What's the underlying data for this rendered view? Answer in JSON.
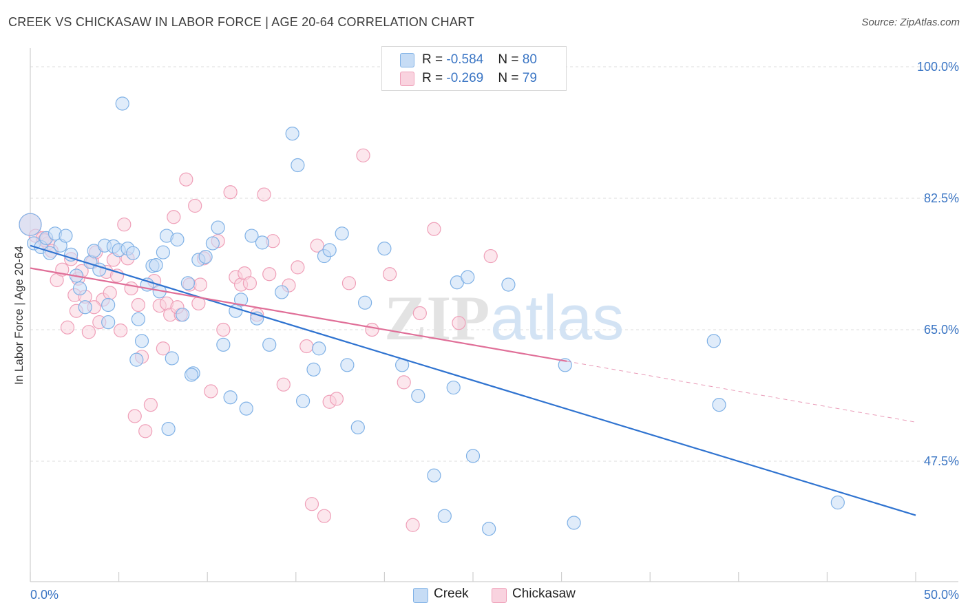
{
  "title": "CREEK VS CHICKASAW IN LABOR FORCE | AGE 20-64 CORRELATION CHART",
  "source": "Source: ZipAtlas.com",
  "watermark": {
    "zip": "ZIP",
    "atlas": "atlas"
  },
  "legend": {
    "items": [
      {
        "name": "Creek",
        "r_label": "R = ",
        "r": "-0.584",
        "n_label": "N = ",
        "n": "80",
        "color": "#7fb1e6",
        "fill": "#c6dcf5"
      },
      {
        "name": "Chickasaw",
        "r_label": "R = ",
        "r": "-0.269",
        "n_label": "N = ",
        "n": "79",
        "color": "#ef9fb8",
        "fill": "#f9d3df"
      }
    ]
  },
  "bottom_legend": [
    "Creek",
    "Chickasaw"
  ],
  "chart_data": {
    "type": "scatter",
    "title": "CREEK VS CHICKASAW IN LABOR FORCE | AGE 20-64 CORRELATION CHART",
    "xlabel": "",
    "ylabel": "In Labor Force | Age 20-64",
    "xlim": [
      0,
      50
    ],
    "ylim": [
      32.5,
      103
    ],
    "x_tick_labels": [
      "0.0%",
      "50.0%"
    ],
    "y_ticks": [
      100.0,
      82.5,
      65.0,
      47.5
    ],
    "y_tick_labels": [
      "100.0%",
      "82.5%",
      "65.0%",
      "47.5%"
    ],
    "grid": true,
    "colors": {
      "creek_stroke": "#7fb1e6",
      "creek_fill": "#c6dcf5",
      "creek_line": "#2f73d0",
      "chickasaw_stroke": "#ef9fb8",
      "chickasaw_fill": "#f9d3df",
      "chickasaw_line": "#e06f98"
    },
    "series": [
      {
        "name": "Creek",
        "trend": {
          "x0": 0,
          "y0": 76.2,
          "x1": 50,
          "y1": 40.3,
          "dashed_from": null
        },
        "points": [
          [
            0.0,
            79.0
          ],
          [
            0.2,
            76.5
          ],
          [
            0.6,
            76.0
          ],
          [
            0.9,
            77.2
          ],
          [
            1.1,
            75.2
          ],
          [
            1.4,
            77.8
          ],
          [
            1.7,
            76.2
          ],
          [
            2.0,
            77.5
          ],
          [
            2.3,
            75.0
          ],
          [
            2.6,
            72.2
          ],
          [
            2.8,
            70.5
          ],
          [
            3.1,
            68.0
          ],
          [
            3.4,
            74.0
          ],
          [
            3.6,
            75.5
          ],
          [
            3.9,
            73.0
          ],
          [
            4.2,
            76.2
          ],
          [
            4.4,
            68.3
          ],
          [
            4.7,
            76.1
          ],
          [
            5.0,
            75.6
          ],
          [
            5.2,
            95.1
          ],
          [
            5.5,
            75.8
          ],
          [
            5.8,
            75.2
          ],
          [
            6.1,
            66.4
          ],
          [
            6.3,
            63.5
          ],
          [
            6.6,
            71.0
          ],
          [
            6.9,
            73.5
          ],
          [
            7.1,
            73.6
          ],
          [
            7.3,
            70.1
          ],
          [
            7.5,
            75.3
          ],
          [
            7.7,
            77.5
          ],
          [
            8.0,
            61.2
          ],
          [
            8.3,
            77.0
          ],
          [
            8.6,
            67.0
          ],
          [
            8.9,
            71.2
          ],
          [
            9.2,
            59.2
          ],
          [
            9.5,
            74.3
          ],
          [
            9.9,
            74.7
          ],
          [
            10.3,
            76.5
          ],
          [
            10.6,
            78.6
          ],
          [
            10.9,
            63.0
          ],
          [
            11.3,
            56.0
          ],
          [
            11.6,
            67.5
          ],
          [
            11.9,
            69.0
          ],
          [
            12.2,
            54.5
          ],
          [
            12.5,
            77.5
          ],
          [
            12.8,
            66.5
          ],
          [
            13.1,
            76.6
          ],
          [
            13.5,
            63.0
          ],
          [
            14.2,
            70.0
          ],
          [
            14.8,
            91.1
          ],
          [
            15.1,
            86.9
          ],
          [
            15.4,
            55.5
          ],
          [
            16.0,
            59.7
          ],
          [
            16.3,
            62.5
          ],
          [
            16.6,
            74.8
          ],
          [
            16.9,
            75.6
          ],
          [
            17.6,
            77.8
          ],
          [
            17.9,
            60.3
          ],
          [
            18.5,
            52.0
          ],
          [
            18.9,
            68.6
          ],
          [
            20.0,
            75.8
          ],
          [
            21.0,
            60.3
          ],
          [
            21.9,
            56.2
          ],
          [
            22.8,
            45.6
          ],
          [
            23.4,
            40.2
          ],
          [
            23.9,
            57.3
          ],
          [
            24.1,
            71.3
          ],
          [
            24.7,
            72.0
          ],
          [
            25.0,
            48.2
          ],
          [
            25.9,
            38.5
          ],
          [
            27.0,
            71.0
          ],
          [
            30.2,
            60.3
          ],
          [
            30.7,
            39.3
          ],
          [
            38.6,
            63.5
          ],
          [
            38.9,
            55.0
          ],
          [
            45.6,
            42.0
          ],
          [
            7.8,
            51.8
          ],
          [
            9.1,
            59.0
          ],
          [
            4.4,
            66.0
          ],
          [
            6.0,
            61.0
          ]
        ]
      },
      {
        "name": "Chickasaw",
        "trend": {
          "x0": 0,
          "y0": 73.2,
          "x1": 30.3,
          "y1": 60.8,
          "dashed_from": 30.3,
          "dash_x1": 50,
          "dash_y1": 52.7
        },
        "points": [
          [
            0.0,
            79.0
          ],
          [
            0.3,
            77.5
          ],
          [
            0.7,
            77.2
          ],
          [
            1.0,
            76.5
          ],
          [
            1.2,
            75.5
          ],
          [
            1.5,
            71.6
          ],
          [
            1.8,
            73.0
          ],
          [
            2.1,
            65.3
          ],
          [
            2.3,
            74.4
          ],
          [
            2.5,
            69.6
          ],
          [
            2.7,
            71.8
          ],
          [
            2.9,
            72.8
          ],
          [
            3.1,
            69.4
          ],
          [
            3.3,
            64.7
          ],
          [
            3.5,
            74.0
          ],
          [
            3.7,
            75.3
          ],
          [
            3.9,
            66.0
          ],
          [
            4.1,
            69.0
          ],
          [
            4.3,
            72.7
          ],
          [
            4.5,
            69.9
          ],
          [
            4.7,
            74.3
          ],
          [
            4.9,
            72.2
          ],
          [
            5.1,
            64.9
          ],
          [
            5.3,
            79.0
          ],
          [
            5.5,
            74.5
          ],
          [
            5.7,
            70.5
          ],
          [
            5.9,
            53.5
          ],
          [
            6.1,
            68.3
          ],
          [
            6.3,
            61.4
          ],
          [
            6.5,
            51.5
          ],
          [
            6.8,
            55.0
          ],
          [
            7.0,
            71.5
          ],
          [
            7.3,
            68.2
          ],
          [
            7.5,
            62.5
          ],
          [
            7.7,
            68.5
          ],
          [
            7.9,
            67.0
          ],
          [
            8.1,
            80.0
          ],
          [
            8.5,
            67.0
          ],
          [
            8.8,
            85.0
          ],
          [
            9.0,
            71.0
          ],
          [
            9.3,
            81.5
          ],
          [
            9.5,
            68.5
          ],
          [
            9.8,
            74.5
          ],
          [
            10.2,
            56.8
          ],
          [
            10.6,
            76.8
          ],
          [
            10.9,
            65.0
          ],
          [
            11.3,
            83.3
          ],
          [
            11.6,
            72.0
          ],
          [
            11.9,
            71.0
          ],
          [
            12.1,
            72.5
          ],
          [
            12.4,
            71.2
          ],
          [
            12.8,
            67.0
          ],
          [
            13.2,
            83.0
          ],
          [
            13.5,
            72.4
          ],
          [
            13.7,
            76.8
          ],
          [
            14.3,
            57.7
          ],
          [
            14.6,
            70.9
          ],
          [
            15.1,
            73.3
          ],
          [
            15.6,
            62.8
          ],
          [
            15.9,
            41.8
          ],
          [
            16.2,
            76.2
          ],
          [
            16.6,
            40.2
          ],
          [
            16.9,
            55.4
          ],
          [
            17.3,
            55.8
          ],
          [
            18.0,
            71.2
          ],
          [
            18.8,
            88.2
          ],
          [
            19.3,
            65.0
          ],
          [
            20.3,
            72.4
          ],
          [
            21.1,
            58.0
          ],
          [
            21.6,
            39.0
          ],
          [
            22.0,
            67.2
          ],
          [
            22.8,
            78.4
          ],
          [
            24.2,
            65.9
          ],
          [
            26.0,
            74.8
          ],
          [
            2.6,
            67.5
          ],
          [
            3.6,
            68.0
          ],
          [
            8.3,
            68.0
          ],
          [
            9.6,
            71.0
          ],
          [
            0.8,
            76.9
          ]
        ]
      }
    ]
  }
}
